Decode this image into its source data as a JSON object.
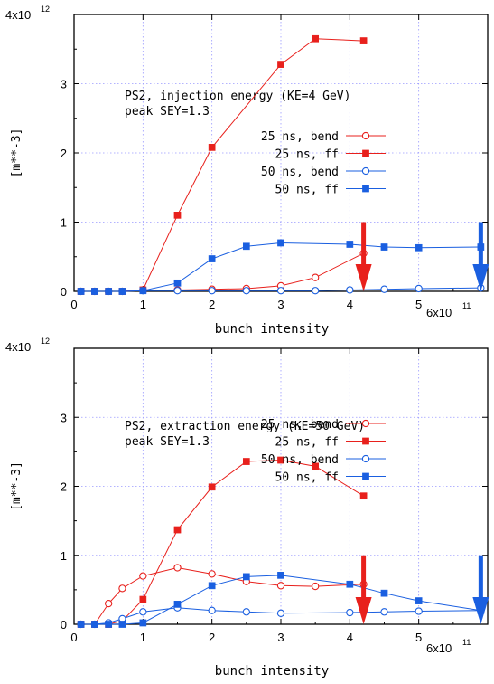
{
  "colors": {
    "red": "#e8201c",
    "blue": "#1a5fe0",
    "grid": "#9a9aff",
    "axis": "#000000"
  },
  "chart_data": [
    {
      "type": "line",
      "annotation": [
        "PS2, injection energy (KE=4 GeV)",
        "peak SEY=1.3"
      ],
      "xlabel": "bunch intensity",
      "ylabel": "[m**-3]",
      "xlim": [
        0,
        6
      ],
      "ylim": [
        0,
        4
      ],
      "x_ticks": [
        "0",
        "1",
        "2",
        "3",
        "4",
        "5"
      ],
      "x_multiplier": {
        "base": "6x10",
        "exp": "11"
      },
      "y_ticks": [
        "0",
        "1",
        "2",
        "3"
      ],
      "y_multiplier": {
        "base": "4x10",
        "exp": "12"
      },
      "grid": true,
      "legend_position": "right",
      "series": [
        {
          "name": "25 ns, bend",
          "color": "red",
          "marker": "open-circle",
          "x": [
            0.1,
            0.3,
            0.5,
            0.7,
            1.0,
            1.5,
            2.0,
            2.5,
            3.0,
            3.5,
            4.2
          ],
          "y": [
            0.0,
            0.0,
            0.0,
            0.0,
            0.02,
            0.02,
            0.03,
            0.04,
            0.08,
            0.2,
            0.55
          ]
        },
        {
          "name": "25 ns, ff",
          "color": "red",
          "marker": "filled-square",
          "x": [
            0.1,
            0.3,
            0.5,
            0.7,
            1.0,
            1.5,
            2.0,
            3.0,
            3.5,
            4.2
          ],
          "y": [
            0.0,
            0.0,
            0.0,
            0.0,
            0.02,
            1.1,
            2.08,
            3.28,
            3.65,
            3.62
          ]
        },
        {
          "name": "50 ns, bend",
          "color": "blue",
          "marker": "open-circle",
          "x": [
            0.1,
            0.3,
            0.5,
            0.7,
            1.0,
            1.5,
            2.0,
            2.5,
            3.0,
            3.5,
            4.0,
            4.5,
            5.0,
            5.9
          ],
          "y": [
            0.0,
            0.0,
            0.0,
            0.0,
            0.01,
            0.01,
            0.01,
            0.01,
            0.01,
            0.01,
            0.02,
            0.03,
            0.04,
            0.05
          ]
        },
        {
          "name": "50 ns, ff",
          "color": "blue",
          "marker": "filled-square",
          "x": [
            0.1,
            0.3,
            0.5,
            0.7,
            1.0,
            1.5,
            2.0,
            2.5,
            3.0,
            4.0,
            4.5,
            5.0,
            5.9
          ],
          "y": [
            0.0,
            0.0,
            0.0,
            0.0,
            0.01,
            0.12,
            0.47,
            0.65,
            0.7,
            0.68,
            0.64,
            0.63,
            0.64
          ]
        }
      ],
      "arrows": [
        {
          "x": 4.2,
          "y_top": 1.0,
          "color": "red"
        },
        {
          "x": 5.9,
          "y_top": 1.0,
          "color": "blue"
        }
      ]
    },
    {
      "type": "line",
      "annotation": [
        "PS2, extraction energy (KE=50 GeV)",
        "peak SEY=1.3"
      ],
      "xlabel": "bunch intensity",
      "ylabel": "[m**-3]",
      "xlim": [
        0,
        6
      ],
      "ylim": [
        0,
        4
      ],
      "x_ticks": [
        "0",
        "1",
        "2",
        "3",
        "4",
        "5"
      ],
      "x_multiplier": {
        "base": "6x10",
        "exp": "11"
      },
      "y_ticks": [
        "0",
        "1",
        "2",
        "3"
      ],
      "y_multiplier": {
        "base": "4x10",
        "exp": "12"
      },
      "grid": true,
      "legend_position": "right",
      "series": [
        {
          "name": "25 ns, bend",
          "color": "red",
          "marker": "open-circle",
          "x": [
            0.1,
            0.3,
            0.5,
            0.7,
            1.0,
            1.5,
            2.0,
            2.5,
            3.0,
            3.5,
            4.2
          ],
          "y": [
            0.0,
            0.0,
            0.3,
            0.52,
            0.7,
            0.82,
            0.73,
            0.62,
            0.56,
            0.55,
            0.58
          ]
        },
        {
          "name": "25 ns, ff",
          "color": "red",
          "marker": "filled-square",
          "x": [
            0.1,
            0.3,
            0.5,
            0.7,
            1.0,
            1.5,
            2.0,
            2.5,
            3.0,
            3.5,
            4.2
          ],
          "y": [
            0.0,
            0.0,
            0.0,
            0.05,
            0.36,
            1.37,
            1.99,
            2.36,
            2.38,
            2.29,
            1.86
          ]
        },
        {
          "name": "50 ns, bend",
          "color": "blue",
          "marker": "open-circle",
          "x": [
            0.1,
            0.3,
            0.5,
            0.7,
            1.0,
            1.5,
            2.0,
            2.5,
            3.0,
            4.0,
            4.5,
            5.0,
            5.9
          ],
          "y": [
            0.0,
            0.0,
            0.02,
            0.08,
            0.18,
            0.24,
            0.2,
            0.18,
            0.16,
            0.17,
            0.18,
            0.19,
            0.2
          ]
        },
        {
          "name": "50 ns, ff",
          "color": "blue",
          "marker": "filled-square",
          "x": [
            0.1,
            0.3,
            0.5,
            0.7,
            1.0,
            1.5,
            2.0,
            2.5,
            3.0,
            4.0,
            4.5,
            5.0,
            5.9
          ],
          "y": [
            0.0,
            0.0,
            0.0,
            0.0,
            0.02,
            0.29,
            0.56,
            0.69,
            0.71,
            0.58,
            0.45,
            0.34,
            0.2
          ]
        }
      ],
      "arrows": [
        {
          "x": 4.2,
          "y_top": 1.0,
          "color": "red"
        },
        {
          "x": 5.9,
          "y_top": 1.0,
          "color": "blue"
        }
      ]
    }
  ]
}
